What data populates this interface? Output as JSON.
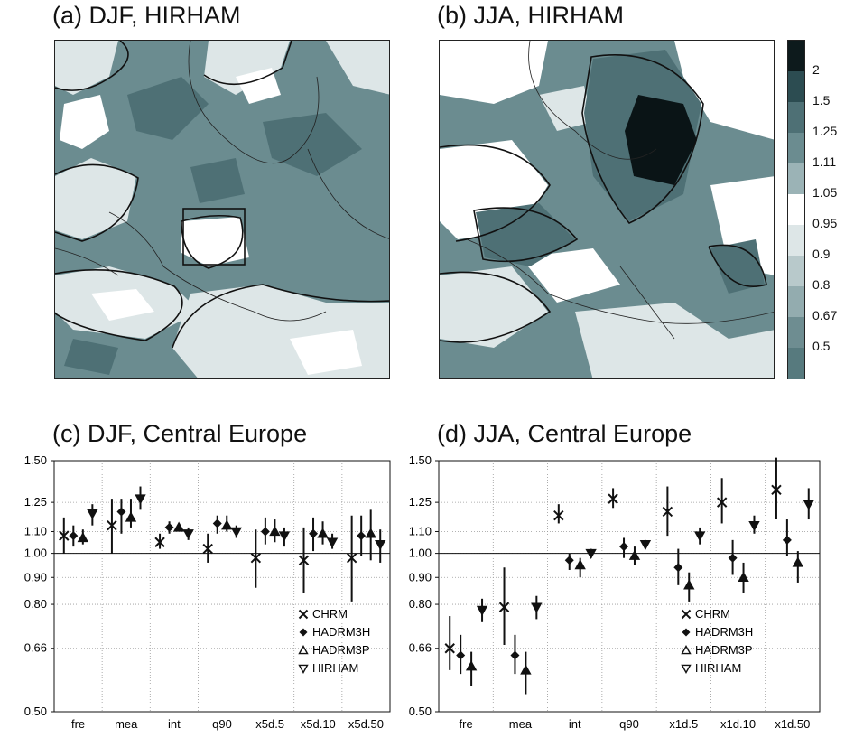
{
  "panels": {
    "a_title": "(a) DJF, HIRHAM",
    "b_title": "(b) JJA, HIRHAM",
    "c_title": "(c) DJF, Central Europe",
    "d_title": "(d) JJA, Central Europe"
  },
  "colorbar": {
    "labels": [
      "2",
      "1.5",
      "1.25",
      "1.11",
      "1.05",
      "0.95",
      "0.9",
      "0.8",
      "0.67",
      "0.5"
    ],
    "colors": [
      "#0d1a1c",
      "#2c4c51",
      "#4e7075",
      "#6b8c90",
      "#9bb3b6",
      "#ffffff",
      "#dde6e7",
      "#b8c9cb",
      "#93acaf",
      "#6e8d91",
      "#577a7e"
    ]
  },
  "map_colors": {
    "dark": "#0a1416",
    "mid": "#4e7075",
    "light": "#9bb3b6",
    "pale": "#dde6e7",
    "white": "#ffffff",
    "base": "#6b8c90"
  },
  "legend": {
    "entries": [
      {
        "symbol": "×",
        "label": "CHRM"
      },
      {
        "symbol": "◆",
        "label": "HADRM3H"
      },
      {
        "symbol": "△",
        "label": "HADRM3P"
      },
      {
        "symbol": "▽",
        "label": "HIRHAM"
      }
    ]
  },
  "chart_data": [
    {
      "type": "scatter",
      "title": "(c) DJF, Central Europe",
      "scale": "log",
      "ylim": [
        0.5,
        1.5
      ],
      "yticks": [
        0.5,
        0.66,
        0.8,
        0.9,
        1.0,
        1.1,
        1.25,
        1.5
      ],
      "ytick_labels": [
        "0.50",
        "0.66",
        "0.80",
        "0.90",
        "1.00",
        "1.10",
        "1.25",
        "1.50"
      ],
      "categories": [
        "fre",
        "mea",
        "int",
        "q90",
        "x5d.5",
        "x5d.10",
        "x5d.50"
      ],
      "reference_line": 1.0,
      "grid": true,
      "legend_position": "bottom-right",
      "series": [
        {
          "name": "CHRM",
          "marker": "x",
          "values": [
            1.08,
            1.13,
            1.05,
            1.02,
            0.98,
            0.97,
            0.98
          ],
          "lower": [
            1.0,
            1.0,
            1.02,
            0.96,
            0.86,
            0.84,
            0.81
          ],
          "upper": [
            1.17,
            1.27,
            1.09,
            1.09,
            1.11,
            1.12,
            1.18
          ]
        },
        {
          "name": "HADRM3H",
          "marker": "diamond",
          "values": [
            1.08,
            1.2,
            1.12,
            1.14,
            1.1,
            1.09,
            1.08
          ],
          "lower": [
            1.03,
            1.09,
            1.09,
            1.09,
            1.04,
            1.01,
            0.99
          ],
          "upper": [
            1.13,
            1.27,
            1.15,
            1.18,
            1.17,
            1.17,
            1.18
          ]
        },
        {
          "name": "HADRM3P",
          "marker": "triangle-up",
          "values": [
            1.07,
            1.17,
            1.12,
            1.13,
            1.1,
            1.09,
            1.09
          ],
          "lower": [
            1.04,
            1.12,
            1.1,
            1.1,
            1.05,
            1.04,
            0.97
          ],
          "upper": [
            1.11,
            1.27,
            1.14,
            1.18,
            1.16,
            1.15,
            1.21
          ]
        },
        {
          "name": "HIRHAM",
          "marker": "triangle-down",
          "values": [
            1.19,
            1.27,
            1.09,
            1.1,
            1.08,
            1.05,
            1.04
          ],
          "lower": [
            1.13,
            1.21,
            1.06,
            1.07,
            1.03,
            1.02,
            0.96
          ],
          "upper": [
            1.24,
            1.34,
            1.12,
            1.13,
            1.12,
            1.09,
            1.11
          ]
        }
      ]
    },
    {
      "type": "scatter",
      "title": "(d) JJA, Central Europe",
      "scale": "log",
      "ylim": [
        0.5,
        1.5
      ],
      "yticks": [
        0.5,
        0.66,
        0.8,
        0.9,
        1.0,
        1.1,
        1.25,
        1.5
      ],
      "ytick_labels": [
        "0.50",
        "0.66",
        "0.80",
        "0.90",
        "1.00",
        "1.10",
        "1.25",
        "1.50"
      ],
      "categories": [
        "fre",
        "mea",
        "int",
        "q90",
        "x1d.5",
        "x1d.10",
        "x1d.50"
      ],
      "reference_line": 1.0,
      "grid": true,
      "legend_position": "bottom-right",
      "series": [
        {
          "name": "CHRM",
          "marker": "x",
          "values": [
            0.66,
            0.79,
            1.18,
            1.27,
            1.2,
            1.25,
            1.32
          ],
          "lower": [
            0.6,
            0.67,
            1.14,
            1.22,
            1.08,
            1.14,
            1.16
          ],
          "upper": [
            0.76,
            0.94,
            1.24,
            1.33,
            1.34,
            1.39,
            1.52
          ]
        },
        {
          "name": "HADRM3H",
          "marker": "diamond",
          "values": [
            0.64,
            0.64,
            0.97,
            1.03,
            0.94,
            0.98,
            1.06
          ],
          "lower": [
            0.59,
            0.59,
            0.93,
            0.98,
            0.87,
            0.91,
            0.99
          ],
          "upper": [
            0.7,
            0.7,
            1.0,
            1.07,
            1.02,
            1.06,
            1.16
          ]
        },
        {
          "name": "HADRM3P",
          "marker": "triangle-up",
          "values": [
            0.61,
            0.6,
            0.95,
            0.99,
            0.87,
            0.9,
            0.96
          ],
          "lower": [
            0.56,
            0.54,
            0.9,
            0.95,
            0.81,
            0.84,
            0.88
          ],
          "upper": [
            0.65,
            0.65,
            0.98,
            1.03,
            0.92,
            0.96,
            1.01
          ]
        },
        {
          "name": "HIRHAM",
          "marker": "triangle-down",
          "values": [
            0.78,
            0.79,
            1.0,
            1.04,
            1.08,
            1.13,
            1.24
          ],
          "lower": [
            0.74,
            0.75,
            0.98,
            1.02,
            1.04,
            1.09,
            1.16
          ],
          "upper": [
            0.82,
            0.83,
            1.02,
            1.06,
            1.12,
            1.18,
            1.33
          ]
        }
      ]
    }
  ]
}
